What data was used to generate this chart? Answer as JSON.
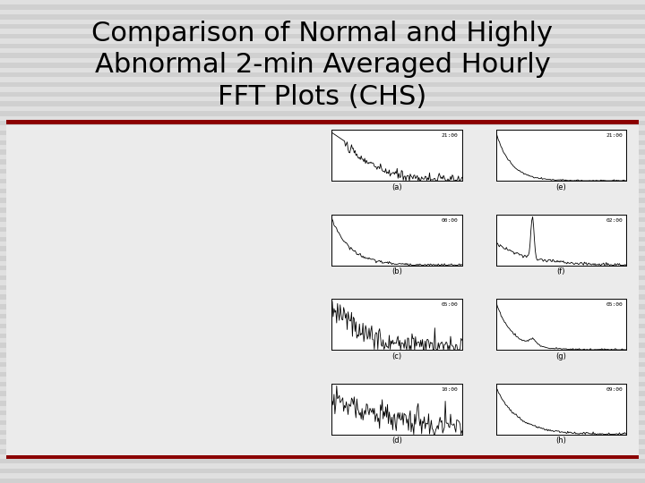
{
  "title": "Comparison of Normal and Highly\nAbnormal 2-min Averaged Hourly\nFFT Plots (CHS)",
  "title_fontsize": 22,
  "bg_stripe_light": "#e0e0e0",
  "bg_stripe_dark": "#d0d0d0",
  "white_area_color": "#f0f0f0",
  "red_line_color": "#8B0000",
  "subplot_labels": [
    "(a)",
    "(b)",
    "(c)",
    "(d)",
    "(e)",
    "(f)",
    "(g)",
    "(h)"
  ],
  "subplot_times": [
    "21:00",
    "00:00",
    "05:00",
    "10:00",
    "21:00",
    "02:00",
    "05:00",
    "09:00"
  ],
  "label_fontsize": 6,
  "time_fontsize": 5
}
